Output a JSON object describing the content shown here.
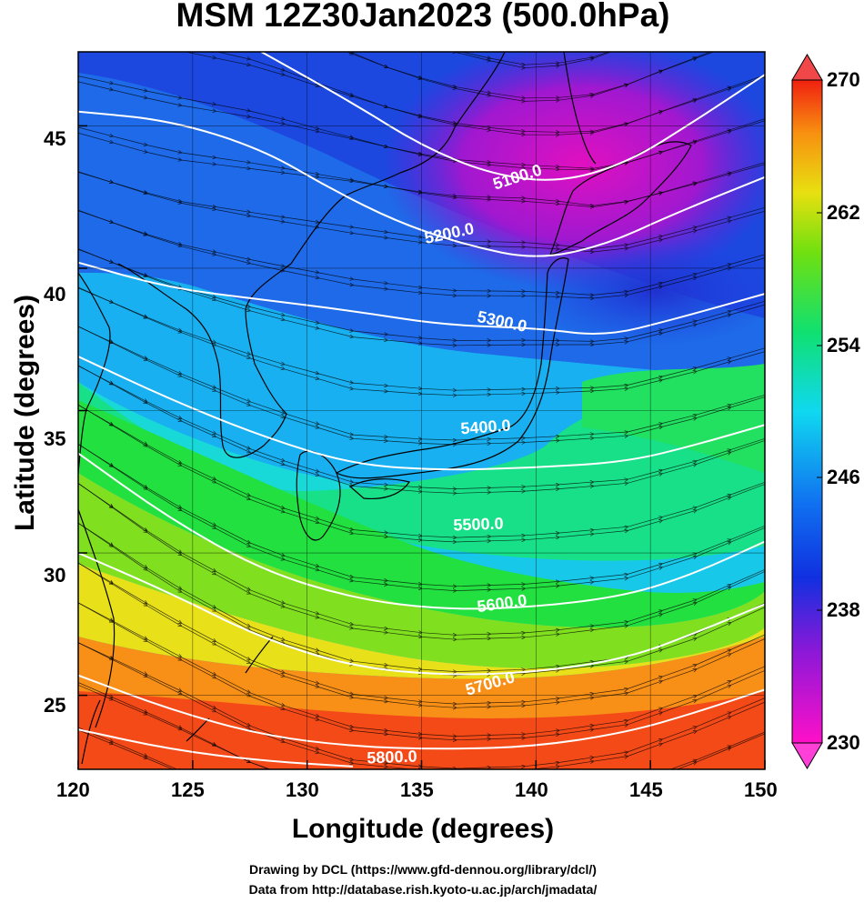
{
  "title": "MSM 12Z30Jan2023 (500.0hPa)",
  "xlabel": "Longitude (degrees)",
  "ylabel": "Latitude  (degrees)",
  "x_ticks": [
    "120",
    "125",
    "130",
    "135",
    "140",
    "145",
    "150"
  ],
  "y_ticks": [
    "45",
    "40",
    "35",
    "30",
    "25"
  ],
  "colorbar_ticks": [
    "270",
    "262",
    "254",
    "246",
    "238",
    "230"
  ],
  "contour_labels": [
    "5100.0",
    "5200.0",
    "5300.0",
    "5400.0",
    "5500.0",
    "5600.0",
    "5700.0",
    "5800.0"
  ],
  "credit_line1": "Drawing by DCL (https://www.gfd-dennou.org/library/dcl/)",
  "credit_line2": "Data from http://database.rish.kyoto-u.ac.jp/arch/jmadata/",
  "colors": {
    "contour": "#ffffff",
    "frame": "#000000"
  },
  "chart_data": {
    "type": "heatmap",
    "title": "MSM 12Z30Jan2023 (500.0hPa)",
    "xlabel": "Longitude (degrees)",
    "ylabel": "Latitude  (degrees)",
    "xlim": [
      120,
      150
    ],
    "ylim": [
      22.4,
      47.6
    ],
    "x_ticks": [
      120,
      125,
      130,
      135,
      140,
      145,
      150
    ],
    "y_ticks": [
      25,
      30,
      35,
      40,
      45
    ],
    "colorbar": {
      "min": 230,
      "max": 270,
      "ticks": [
        230,
        238,
        246,
        254,
        262,
        270
      ]
    },
    "contours": [
      {
        "label": "5100.0",
        "points": [
          [
            128,
            47.6
          ],
          [
            132,
            45.8
          ],
          [
            135,
            44.3
          ],
          [
            138,
            43.3
          ],
          [
            141,
            43.0
          ],
          [
            144,
            43.7
          ],
          [
            147,
            45.2
          ],
          [
            150,
            46.8
          ]
        ]
      },
      {
        "label": "5200.0",
        "points": [
          [
            120,
            45.5
          ],
          [
            124,
            45.2
          ],
          [
            128,
            44.2
          ],
          [
            131,
            42.8
          ],
          [
            134,
            41.6
          ],
          [
            137,
            40.8
          ],
          [
            140,
            40.3
          ],
          [
            143,
            40.8
          ],
          [
            146,
            41.9
          ],
          [
            150,
            43.2
          ]
        ]
      },
      {
        "label": "5300.0",
        "points": [
          [
            120,
            40.2
          ],
          [
            124,
            39.3
          ],
          [
            128,
            38.9
          ],
          [
            132,
            38.5
          ],
          [
            136,
            38.0
          ],
          [
            140,
            37.9
          ],
          [
            143,
            37.6
          ],
          [
            146,
            38.2
          ],
          [
            150,
            39.1
          ]
        ]
      },
      {
        "label": "5400.0",
        "points": [
          [
            120,
            36.9
          ],
          [
            124,
            35.4
          ],
          [
            128,
            34.1
          ],
          [
            132,
            33.1
          ],
          [
            136,
            32.9
          ],
          [
            140,
            33.0
          ],
          [
            144,
            33.2
          ],
          [
            147,
            33.8
          ],
          [
            150,
            34.5
          ]
        ]
      },
      {
        "label": "5500.0",
        "points": [
          [
            120,
            33.5
          ],
          [
            124,
            31.2
          ],
          [
            128,
            29.4
          ],
          [
            132,
            28.4
          ],
          [
            136,
            28.0
          ],
          [
            140,
            28.1
          ],
          [
            144,
            28.5
          ],
          [
            147,
            29.3
          ],
          [
            150,
            30.4
          ]
        ]
      },
      {
        "label": "5600.0",
        "points": [
          [
            120,
            30.0
          ],
          [
            124,
            28.6
          ],
          [
            128,
            27.0
          ],
          [
            132,
            26.0
          ],
          [
            136,
            25.7
          ],
          [
            140,
            25.8
          ],
          [
            144,
            26.3
          ],
          [
            147,
            27.2
          ],
          [
            150,
            28.2
          ]
        ]
      },
      {
        "label": "5700.0",
        "points": [
          [
            120,
            25.7
          ],
          [
            124,
            24.5
          ],
          [
            128,
            23.6
          ],
          [
            132,
            23.2
          ],
          [
            136,
            23.1
          ],
          [
            140,
            23.2
          ],
          [
            144,
            23.7
          ],
          [
            147,
            24.4
          ],
          [
            150,
            25.2
          ]
        ]
      },
      {
        "label": "5800.0",
        "points": [
          [
            120,
            23.8
          ],
          [
            124,
            23.1
          ],
          [
            128,
            22.7
          ],
          [
            132,
            22.5
          ]
        ]
      }
    ]
  }
}
